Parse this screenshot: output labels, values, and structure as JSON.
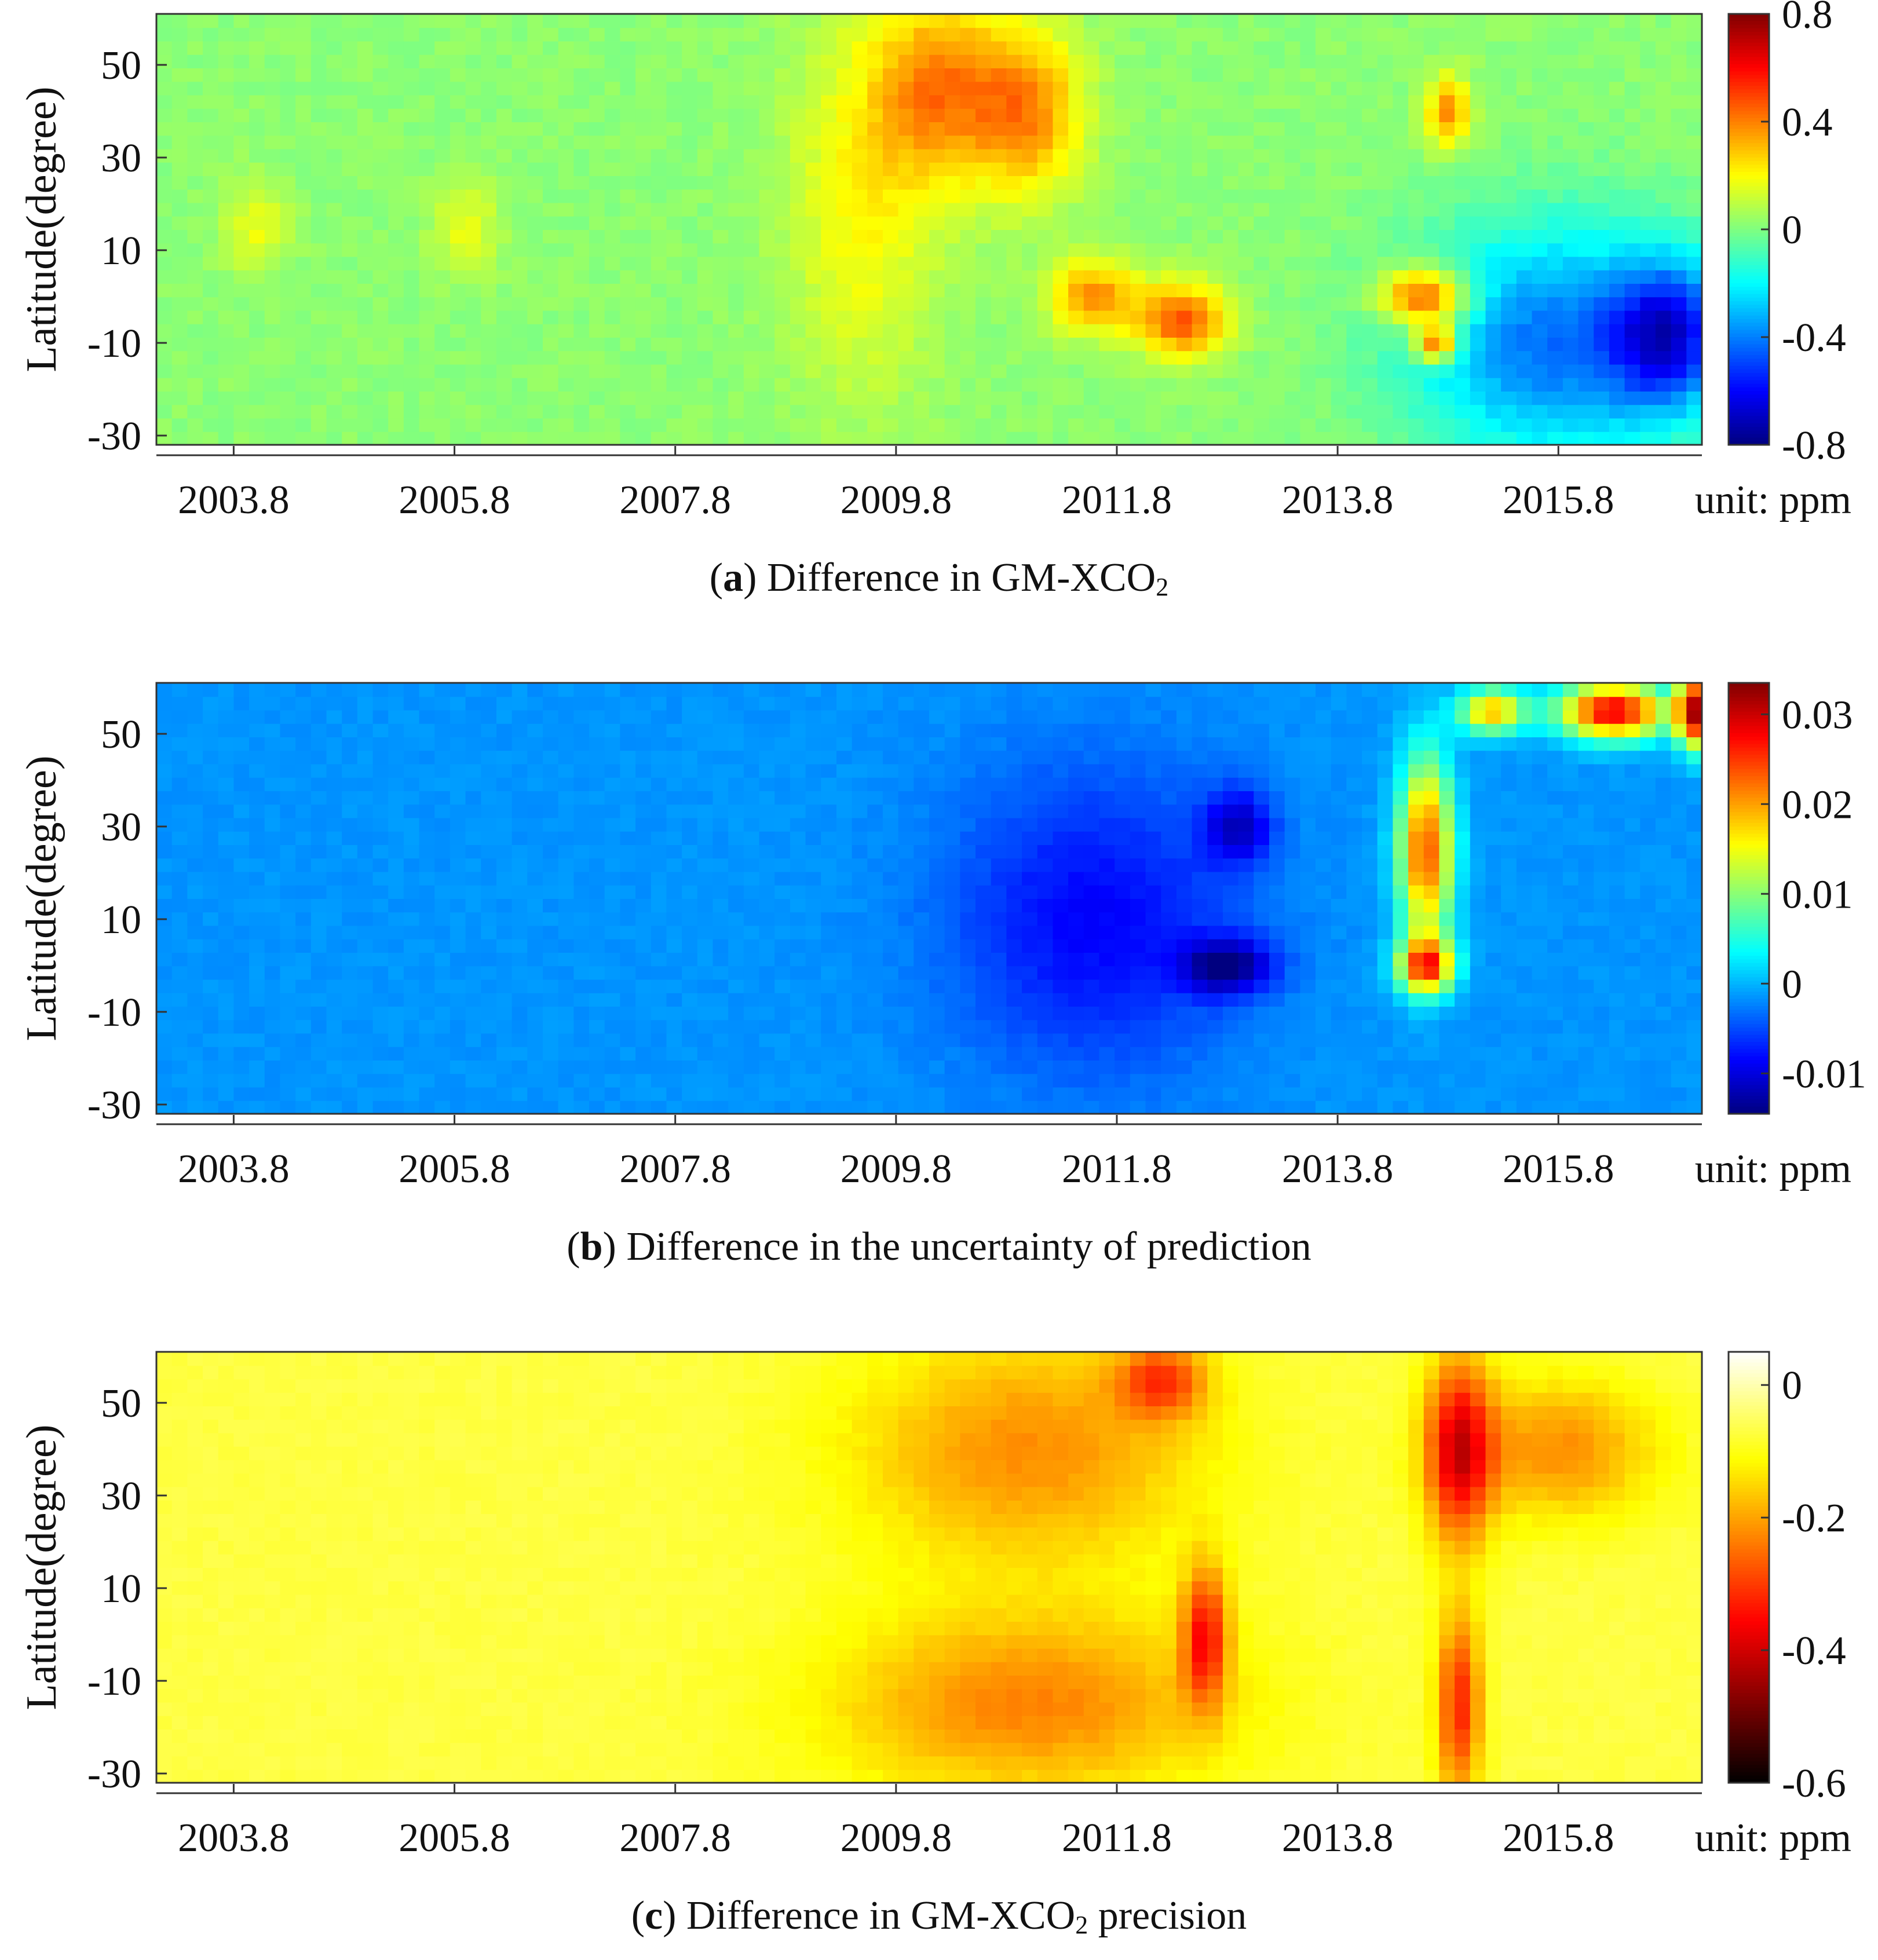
{
  "chart_data": [
    {
      "type": "heatmap",
      "panel_letter": "a",
      "caption_text": "Difference in GM-XCO",
      "caption_sub": "2",
      "caption_suffix": "",
      "xlabel": "",
      "ylabel": "Latitude(degree)",
      "x_tick_labels": [
        "2003.8",
        "2005.8",
        "2007.8",
        "2009.8",
        "2011.8",
        "2013.8",
        "2015.8"
      ],
      "x_tick_values": [
        2003.8,
        2005.8,
        2007.8,
        2009.8,
        2011.8,
        2013.8,
        2015.8
      ],
      "xlim": [
        2003.1,
        2017.1
      ],
      "y_tick_labels": [
        "50",
        "30",
        "10",
        "-10",
        "-30"
      ],
      "y_tick_values": [
        50,
        30,
        10,
        -10,
        -30
      ],
      "ylim": [
        -32,
        61
      ],
      "colorbar": {
        "colormap": "jet",
        "ticks": [
          "0.8",
          "0.4",
          "0",
          "-0.4",
          "-0.8"
        ],
        "tick_values": [
          0.8,
          0.4,
          0,
          -0.4,
          -0.8
        ],
        "range": [
          -0.8,
          0.8
        ],
        "unit_label": "unit: ppm"
      }
    },
    {
      "type": "heatmap",
      "panel_letter": "b",
      "caption_text": "Difference in the uncertainty of prediction",
      "caption_sub": "",
      "caption_suffix": "",
      "xlabel": "",
      "ylabel": "Latitude(degree)",
      "x_tick_labels": [
        "2003.8",
        "2005.8",
        "2007.8",
        "2009.8",
        "2011.8",
        "2013.8",
        "2015.8"
      ],
      "x_tick_values": [
        2003.8,
        2005.8,
        2007.8,
        2009.8,
        2011.8,
        2013.8,
        2015.8
      ],
      "xlim": [
        2003.1,
        2017.1
      ],
      "y_tick_labels": [
        "50",
        "30",
        "10",
        "-10",
        "-30"
      ],
      "y_tick_values": [
        50,
        30,
        10,
        -10,
        -30
      ],
      "ylim": [
        -32,
        61
      ],
      "colorbar": {
        "colormap": "jet",
        "ticks": [
          "0.03",
          "0.02",
          "0.01",
          "0",
          "-0.01"
        ],
        "tick_values": [
          0.03,
          0.02,
          0.01,
          0,
          -0.01
        ],
        "range": [
          -0.0145,
          0.0335
        ],
        "unit_label": "unit: ppm"
      }
    },
    {
      "type": "heatmap",
      "panel_letter": "c",
      "caption_text": "Difference in GM-XCO",
      "caption_sub": "2",
      "caption_suffix": " precision",
      "xlabel": "",
      "ylabel": "Latitude(degree)",
      "x_tick_labels": [
        "2003.8",
        "2005.8",
        "2007.8",
        "2009.8",
        "2011.8",
        "2013.8",
        "2015.8"
      ],
      "x_tick_values": [
        2003.8,
        2005.8,
        2007.8,
        2009.8,
        2011.8,
        2013.8,
        2015.8
      ],
      "xlim": [
        2003.1,
        2017.1
      ],
      "y_tick_labels": [
        "50",
        "30",
        "10",
        "-10",
        "-30"
      ],
      "y_tick_values": [
        50,
        30,
        10,
        -10,
        -30
      ],
      "ylim": [
        -32,
        61
      ],
      "colorbar": {
        "colormap": "hot",
        "ticks": [
          "0",
          "-0.2",
          "-0.4",
          "-0.6"
        ],
        "tick_values": [
          0,
          -0.2,
          -0.4,
          -0.6
        ],
        "range": [
          -0.6,
          0.05
        ],
        "unit_label": "unit: ppm"
      }
    }
  ]
}
